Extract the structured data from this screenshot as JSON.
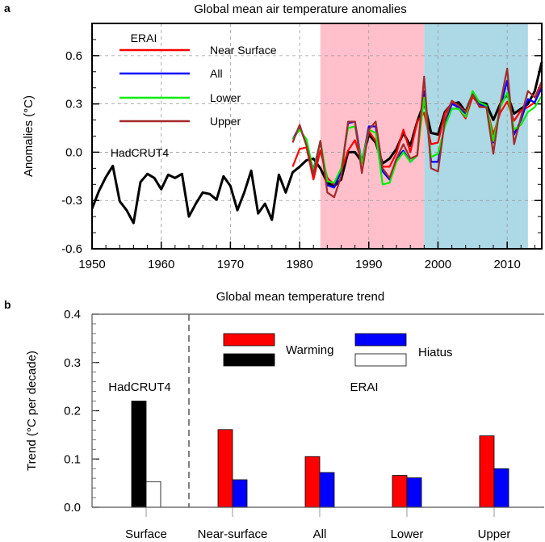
{
  "chart_data": [
    {
      "panel_label": "a",
      "type": "line",
      "title": "Global mean air temperature anomalies",
      "xlabel": "",
      "ylabel": "Anomalies (°C)",
      "xlim": [
        1950,
        2015
      ],
      "ylim": [
        -0.6,
        0.8
      ],
      "xticks": [
        "1950",
        "1960",
        "1970",
        "1980",
        "1990",
        "2000",
        "2010"
      ],
      "yticks": [
        "-0.6",
        "-0.3",
        "0.0",
        "0.3",
        "0.6"
      ],
      "grid": true,
      "shaded_periods": [
        {
          "start": 1983,
          "end": 1998,
          "color": "#ffc0cb"
        },
        {
          "start": 1998,
          "end": 2013,
          "color": "#add8e6"
        }
      ],
      "legend_title": "ERAI",
      "legend_placement": "top-left",
      "hadcrut_label": "HadCRUT4",
      "series": [
        {
          "name": "HadCRUT4",
          "color": "#000000",
          "start_year": 1950,
          "values": [
            -0.35,
            -0.24,
            -0.155,
            -0.085,
            -0.305,
            -0.36,
            -0.44,
            -0.185,
            -0.135,
            -0.16,
            -0.23,
            -0.14,
            -0.16,
            -0.135,
            -0.4,
            -0.32,
            -0.25,
            -0.26,
            -0.295,
            -0.15,
            -0.21,
            -0.36,
            -0.25,
            -0.115,
            -0.38,
            -0.32,
            -0.42,
            -0.14,
            -0.25,
            -0.125,
            -0.09,
            -0.05,
            -0.04,
            -0.1,
            -0.19,
            -0.21,
            -0.17,
            0.0,
            0.0,
            -0.06,
            0.11,
            0.06,
            -0.07,
            -0.04,
            0.02,
            0.12,
            0.04,
            0.19,
            0.31,
            0.12,
            0.11,
            0.25,
            0.3,
            0.31,
            0.25,
            0.36,
            0.31,
            0.3,
            0.2,
            0.3,
            0.36,
            0.24,
            0.27,
            0.3,
            0.38,
            0.56
          ]
        },
        {
          "name": "Near Surface",
          "color": "#ff0000",
          "start_year": 1979,
          "values": [
            -0.09,
            0.02,
            0.03,
            -0.17,
            0.01,
            -0.16,
            -0.2,
            -0.12,
            0.01,
            0.075,
            -0.06,
            0.13,
            0.07,
            -0.09,
            -0.09,
            -0.005,
            0.14,
            0.0,
            0.19,
            0.245,
            0.05,
            0.06,
            0.24,
            0.31,
            0.27,
            0.21,
            0.345,
            0.29,
            0.28,
            0.11,
            0.245,
            0.315,
            0.195,
            0.26,
            0.28,
            0.31,
            0.43
          ]
        },
        {
          "name": "All",
          "color": "#0000ff",
          "start_year": 1979,
          "values": [
            0.08,
            0.16,
            0.045,
            -0.11,
            0.07,
            -0.205,
            -0.22,
            -0.12,
            0.18,
            0.19,
            -0.07,
            0.16,
            0.16,
            -0.12,
            -0.17,
            -0.04,
            0.01,
            -0.06,
            -0.02,
            0.38,
            -0.06,
            -0.06,
            0.18,
            0.3,
            0.28,
            0.24,
            0.37,
            0.3,
            0.28,
            0.06,
            0.28,
            0.445,
            0.11,
            0.2,
            0.33,
            0.31,
            0.4
          ]
        },
        {
          "name": "Lower",
          "color": "#00ee00",
          "start_year": 1979,
          "values": [
            0.08,
            0.14,
            0.08,
            -0.12,
            0.07,
            -0.18,
            -0.19,
            -0.1,
            0.15,
            0.16,
            -0.07,
            0.14,
            0.12,
            -0.2,
            -0.19,
            -0.06,
            0.0,
            -0.06,
            -0.02,
            0.34,
            -0.03,
            -0.01,
            0.16,
            0.27,
            0.27,
            0.22,
            0.38,
            0.31,
            0.29,
            0.07,
            0.28,
            0.37,
            0.14,
            0.17,
            0.25,
            0.28,
            0.35
          ]
        },
        {
          "name": "Upper",
          "color": "#a52a2a",
          "start_year": 1979,
          "values": [
            0.06,
            0.17,
            0.04,
            -0.14,
            0.07,
            -0.25,
            -0.28,
            -0.15,
            0.19,
            0.19,
            -0.13,
            0.14,
            0.19,
            -0.1,
            -0.16,
            -0.04,
            0.05,
            -0.04,
            -0.02,
            0.47,
            -0.1,
            -0.12,
            0.2,
            0.32,
            0.29,
            0.25,
            0.36,
            0.28,
            0.28,
            -0.01,
            0.3,
            0.52,
            0.05,
            0.22,
            0.38,
            0.34,
            0.44
          ]
        }
      ]
    },
    {
      "panel_label": "b",
      "type": "bar",
      "title": "Global mean temperature trend",
      "xlabel": "",
      "ylabel": "Trend (°C per decade)",
      "ylim": [
        0,
        0.4
      ],
      "yticks": [
        "0.0",
        "0.1",
        "0.2",
        "0.3",
        "0.4"
      ],
      "categories": [
        "Surface",
        "Near-surface",
        "All",
        "Lower",
        "Upper"
      ],
      "group_labels": [
        "HadCRUT4",
        "ERAI"
      ],
      "legend": {
        "warming": "Warming",
        "hiatus": "Hiatus"
      },
      "legend_placement": "top-center",
      "series": [
        {
          "name": "Warming",
          "colors": [
            "#000000",
            "#ff0000",
            "#ff0000",
            "#ff0000",
            "#ff0000"
          ],
          "values": [
            0.22,
            0.161,
            0.105,
            0.066,
            0.148
          ]
        },
        {
          "name": "Hiatus",
          "colors": [
            "#ffffff",
            "#0000ff",
            "#0000ff",
            "#0000ff",
            "#0000ff"
          ],
          "values": [
            0.053,
            0.057,
            0.072,
            0.061,
            0.08
          ]
        }
      ]
    }
  ]
}
